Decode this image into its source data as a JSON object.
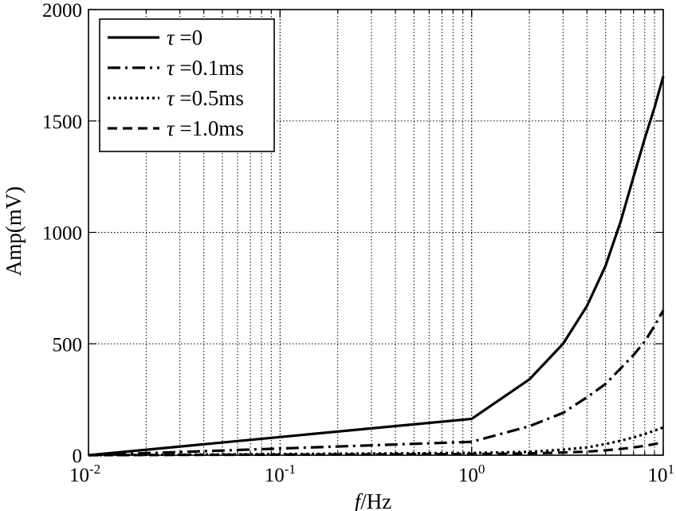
{
  "chart_data": {
    "type": "line",
    "xscale": "log",
    "xlim": [
      0.01,
      10
    ],
    "ylim": [
      0,
      2000
    ],
    "xlabel_italic": "f",
    "xlabel_rest": "/Hz",
    "ylabel": "Amp(mV)",
    "grid": true,
    "legend_position": "top-left",
    "x_ticks": [
      {
        "value": 0.01,
        "base": "10",
        "exp": "-2"
      },
      {
        "value": 0.1,
        "base": "10",
        "exp": "-1"
      },
      {
        "value": 1,
        "base": "10",
        "exp": "0"
      },
      {
        "value": 10,
        "base": "10",
        "exp": "1"
      }
    ],
    "y_ticks": [
      {
        "value": 0,
        "label": "0"
      },
      {
        "value": 500,
        "label": "500"
      },
      {
        "value": 1000,
        "label": "1000"
      },
      {
        "value": 1500,
        "label": "1500"
      },
      {
        "value": 2000,
        "label": "2000"
      }
    ],
    "x": [
      0.01,
      1,
      2,
      3,
      4,
      5,
      6,
      7,
      8,
      9,
      10
    ],
    "series": [
      {
        "name_symbol": "τ",
        "name_rest": " =0",
        "dash": "solid",
        "values": [
          0,
          163,
          340,
          500,
          670,
          850,
          1050,
          1250,
          1420,
          1560,
          1700
        ]
      },
      {
        "name_symbol": "τ",
        "name_rest": " =0.1ms",
        "dash": "dashdot",
        "values": [
          0,
          60,
          130,
          190,
          260,
          320,
          390,
          450,
          510,
          580,
          650
        ]
      },
      {
        "name_symbol": "τ",
        "name_rest": " =0.5ms",
        "dash": "dotted",
        "values": [
          0,
          10,
          15,
          25,
          35,
          50,
          65,
          80,
          95,
          110,
          125
        ]
      },
      {
        "name_symbol": "τ",
        "name_rest": " =1.0ms",
        "dash": "dashed",
        "values": [
          0,
          5,
          8,
          12,
          16,
          22,
          28,
          35,
          42,
          50,
          58
        ]
      }
    ]
  }
}
